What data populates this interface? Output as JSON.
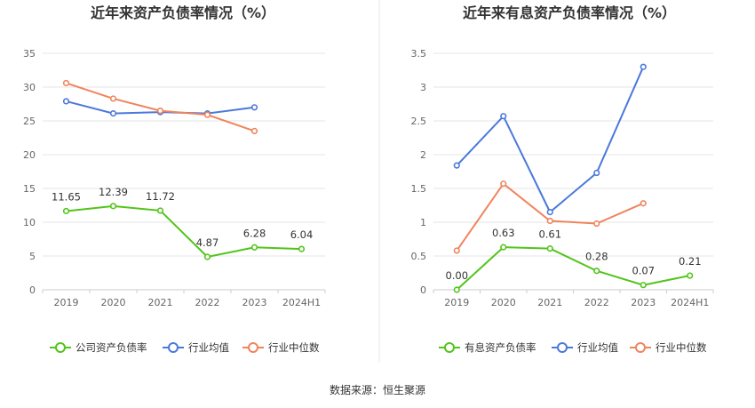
{
  "source": "数据来源：恒生聚源",
  "colors": {
    "company": "#52c41a",
    "avg": "#4a78db",
    "median": "#f0845c",
    "grid": "#e6e6e6",
    "axis": "#cccccc"
  },
  "chart_data": [
    {
      "type": "line",
      "title": "近年来资产负债率情况（%）",
      "categories": [
        "2019",
        "2020",
        "2021",
        "2022",
        "2023",
        "2024H1"
      ],
      "ylim": [
        0,
        35
      ],
      "yticks": [
        "0",
        "5",
        "10",
        "15",
        "20",
        "25",
        "30",
        "35"
      ],
      "legend_position": "bottom",
      "series": [
        {
          "name": "公司资产负债率",
          "color": "#52c41a",
          "values": [
            11.65,
            12.39,
            11.72,
            4.87,
            6.28,
            6.04
          ],
          "labels": [
            "11.65",
            "12.39",
            "11.72",
            "4.87",
            "6.28",
            "6.04"
          ]
        },
        {
          "name": "行业均值",
          "color": "#4a78db",
          "values": [
            27.9,
            26.1,
            26.3,
            26.1,
            27.0,
            null
          ]
        },
        {
          "name": "行业中位数",
          "color": "#f0845c",
          "values": [
            30.6,
            28.3,
            26.5,
            25.9,
            23.5,
            null
          ]
        }
      ]
    },
    {
      "type": "line",
      "title": "近年来有息资产负债率情况（%）",
      "categories": [
        "2019",
        "2020",
        "2021",
        "2022",
        "2023",
        "2024H1"
      ],
      "ylim": [
        0,
        3.5
      ],
      "yticks": [
        "0",
        "0.5",
        "1",
        "1.5",
        "2",
        "2.5",
        "3",
        "3.5"
      ],
      "legend_position": "bottom",
      "series": [
        {
          "name": "有息资产负债率",
          "color": "#52c41a",
          "values": [
            0.0,
            0.63,
            0.61,
            0.28,
            0.07,
            0.21
          ],
          "labels": [
            "0.00",
            "0.63",
            "0.61",
            "0.28",
            "0.07",
            "0.21"
          ]
        },
        {
          "name": "行业均值",
          "color": "#4a78db",
          "values": [
            1.84,
            2.57,
            1.15,
            1.73,
            3.3,
            null
          ]
        },
        {
          "name": "行业中位数",
          "color": "#f0845c",
          "values": [
            0.58,
            1.57,
            1.02,
            0.98,
            1.28,
            null
          ]
        }
      ]
    }
  ]
}
